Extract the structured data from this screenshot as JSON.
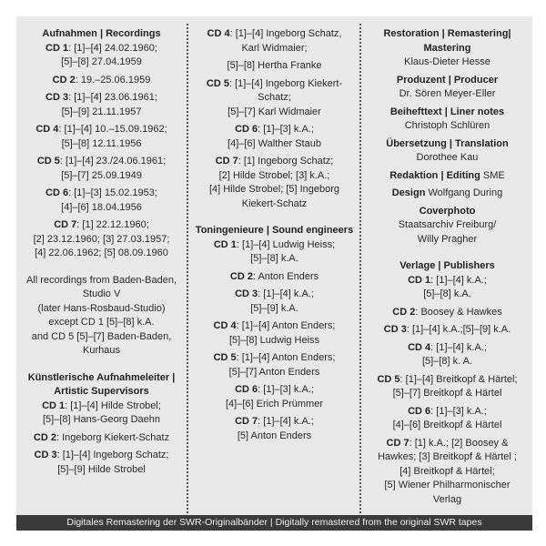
{
  "columns": [
    [
      {
        "head": "Aufnahmen | Recordings",
        "lines": [
          {
            "b": "CD 1",
            "t": "[1]–[4] 24.02.1960;"
          },
          "[5]–[8] 27.04.1959"
        ]
      },
      {
        "lines": [
          {
            "b": "CD 2",
            "t": "19.–25.06.1959"
          }
        ]
      },
      {
        "lines": [
          {
            "b": "CD 3",
            "t": "[1]–[4] 23.06.1961;"
          },
          "[5]–[9] 21.11.1957"
        ]
      },
      {
        "lines": [
          {
            "b": "CD 4",
            "t": "[1]–[4] 10.–15.09.1962;"
          },
          "[5]–[8] 12.11.1956"
        ]
      },
      {
        "lines": [
          {
            "b": "CD 5",
            "t": "[1]–[4] 23./24.06.1961;"
          },
          "[5]–[7] 25.09.1949"
        ]
      },
      {
        "lines": [
          {
            "b": "CD 6",
            "t": "[1]–[3] 15.02.1953;"
          },
          "[4]–[6] 18.04.1956"
        ]
      },
      {
        "lines": [
          {
            "b": "CD 7",
            "t": "[1] 22.12.1960;"
          },
          "[2] 23.12.1960; [3] 27.03.1957;",
          "[4] 22.06.1962; [5] 08.09.1960"
        ]
      },
      {
        "sp": true,
        "lines": [
          "All recordings from Baden-Baden,",
          "Studio V",
          "(later Hans-Rosbaud-Studio)",
          "except CD 1 [5]–[8] k.A.",
          "and CD 5 [5]–[7] Baden-Baden,",
          "Kurhaus"
        ]
      },
      {
        "sp": true,
        "head": "Künstlerische Aufnahmeleiter |\nArtistic Supervisors",
        "lines": [
          {
            "b": "CD 1",
            "t": "[1]–[4] Hilde Strobel;"
          },
          "[5]–[8] Hans-Georg Daehn"
        ]
      },
      {
        "lines": [
          {
            "b": "CD 2",
            "t": "Ingeborg Kiekert-Schatz"
          }
        ]
      },
      {
        "lines": [
          {
            "b": "CD 3",
            "t": "[1]–[4] Ingeborg Schatz;"
          },
          "[5]–[9] Hilde Strobel"
        ]
      }
    ],
    [
      {
        "lines": [
          {
            "b": "CD 4",
            "t": "[1]–[4] Ingeborg Schatz,"
          },
          "Karl Widmaier;"
        ]
      },
      {
        "lines": [
          "[5]–[8] Hertha Franke"
        ]
      },
      {
        "lines": [
          {
            "b": "CD 5",
            "t": "[1]–[4] Ingeborg Kiekert-"
          },
          "Schatz;",
          "[5]–[7] Karl Widmaier"
        ]
      },
      {
        "lines": [
          {
            "b": "CD 6",
            "t": "[1]–[3] k.A.;"
          },
          "[4]–[6] Walther Staub"
        ]
      },
      {
        "lines": [
          {
            "b": "CD 7",
            "t": "[1] Ingeborg Schatz;"
          },
          "[2] Hilde Strobel; [3] k.A.;",
          "[4] Hilde Strobel; [5] Ingeborg",
          "Kiekert-Schatz"
        ]
      },
      {
        "sp": true,
        "head": "Toningenieure | Sound engineers",
        "lines": [
          {
            "b": "CD 1",
            "t": "[1]–[4] Ludwig Heiss;"
          },
          "[5]–[8] k.A."
        ]
      },
      {
        "lines": [
          {
            "b": "CD 2",
            "t": "Anton Enders"
          }
        ]
      },
      {
        "lines": [
          {
            "b": "CD 3",
            "t": "[1]–[4] k.A.;"
          },
          "[5]–[9] k.A."
        ]
      },
      {
        "lines": [
          {
            "b": "CD 4",
            "t": "[1]–[4] Anton Enders;"
          },
          "[5]–[8] Ludwig Heiss"
        ]
      },
      {
        "lines": [
          {
            "b": "CD 5",
            "t": "[1]–[4] Anton Enders;"
          },
          "[5]–[7] Anton Enders"
        ]
      },
      {
        "lines": [
          {
            "b": "CD 6",
            "t": "[1]–[3] k.A.;"
          },
          "[4]–[6] Erich Prümmer"
        ]
      },
      {
        "lines": [
          {
            "b": "CD 7",
            "t": "[1]–[4] k.A.;"
          },
          "[5] Anton Enders"
        ]
      }
    ],
    [
      {
        "head": "Restoration | Remastering|\nMastering",
        "lines": [
          "Klaus-Dieter Hesse"
        ]
      },
      {
        "head": "Produzent | Producer",
        "lines": [
          "Dr. Sören Meyer-Eller"
        ]
      },
      {
        "head": "Beihefttext | Liner notes",
        "lines": [
          "Christoph Schlüren"
        ]
      },
      {
        "head": "Übersetzung | Translation",
        "lines": [
          "Dorothee Kau"
        ]
      },
      {
        "lines": [
          {
            "b": "Redaktion | Editing",
            "t": "SME",
            "nocolon": true
          }
        ]
      },
      {
        "lines": [
          {
            "b": "Design",
            "t": "Wolfgang During",
            "nocolon": true
          }
        ]
      },
      {
        "head": "Coverphoto",
        "lines": [
          "Staatsarchiv Freiburg/",
          "Willy Pragher"
        ]
      },
      {
        "sp": true,
        "head": "Verlage | Publishers",
        "lines": [
          {
            "b": "CD 1",
            "t": "[1]–[4] k.A.;"
          },
          "[5]–[8] k.A."
        ]
      },
      {
        "lines": [
          {
            "b": "CD 2",
            "t": "Boosey & Hawkes"
          }
        ]
      },
      {
        "lines": [
          {
            "b": "CD 3",
            "t": "[1]–[4] k.A.;[5]–[9] k.A."
          }
        ]
      },
      {
        "lines": [
          {
            "b": "CD 4",
            "t": "[1]–[4] k.A.;"
          },
          "[5]–[8] k. A."
        ]
      },
      {
        "lines": [
          {
            "b": "CD 5",
            "t": "[1]–[4] Breitkopf & Härtel;"
          },
          "[5]–[7] Breitkopf & Härtel"
        ]
      },
      {
        "lines": [
          {
            "b": "CD 6",
            "t": "[1]–[3] k.A.;"
          },
          "[4]–[6] Breitkopf & Härtel"
        ]
      },
      {
        "lines": [
          {
            "b": "CD 7",
            "t": "[1] k.A.; [2] Boosey &"
          },
          "Hawkes; [3] Breitkopf & Härtel ;",
          "[4] Breitkopf & Härtel;",
          "[5] Wiener Philharmonischer",
          "Verlag"
        ]
      }
    ]
  ],
  "footer": "Digitales Remastering der SWR-Originalbänder | Digitally remastered from the original SWR tapes"
}
